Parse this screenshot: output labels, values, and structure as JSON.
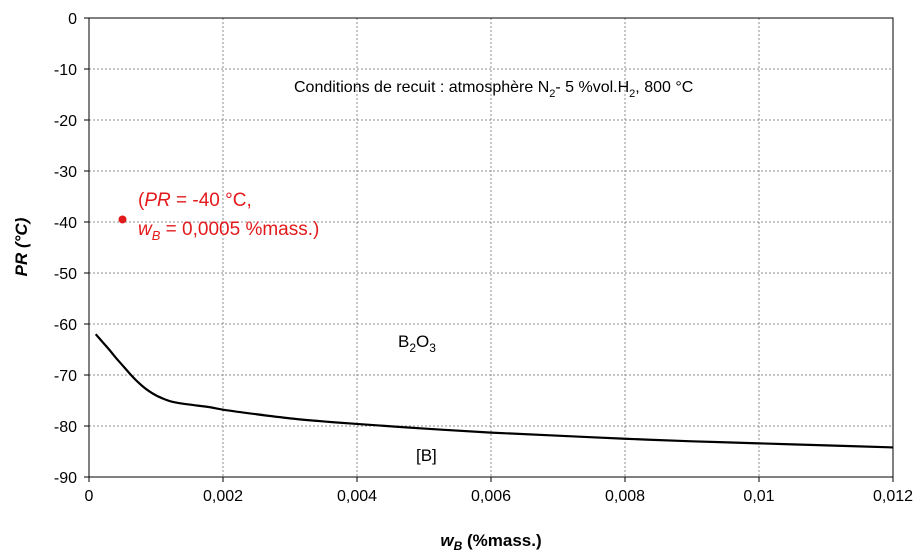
{
  "chart_data": {
    "type": "line",
    "xlabel": {
      "main": "w",
      "sub": "B",
      "rest": " (%mass.)"
    },
    "ylabel": "PR (°C)",
    "xlim": [
      0,
      0.012
    ],
    "ylim": [
      -90,
      0
    ],
    "x_ticks": [
      0,
      0.002,
      0.004,
      0.006,
      0.008,
      0.01,
      0.012
    ],
    "x_tick_labels": [
      "0",
      "0,002",
      "0,004",
      "0,006",
      "0,008",
      "0,01",
      "0,012"
    ],
    "y_ticks": [
      0,
      -10,
      -20,
      -30,
      -40,
      -50,
      -60,
      -70,
      -80,
      -90
    ],
    "y_tick_labels": [
      "0",
      "-10",
      "-20",
      "-30",
      "-40",
      "-50",
      "-60",
      "-70",
      "-80",
      "-90"
    ],
    "grid": true,
    "series": [
      {
        "color": "#000000",
        "x": [
          0.0001,
          0.0002,
          0.0003,
          0.0004,
          0.0005,
          0.0006,
          0.0007,
          0.0008,
          0.0009,
          0.001,
          0.0011,
          0.0012,
          0.0013,
          0.0015,
          0.0018,
          0.002,
          0.0025,
          0.003,
          0.0035,
          0.004,
          0.005,
          0.006,
          0.007,
          0.008,
          0.009,
          0.01,
          0.011,
          0.012
        ],
        "y": [
          -62,
          -63.5,
          -65,
          -66.6,
          -68.1,
          -69.6,
          -71,
          -72.2,
          -73.2,
          -74,
          -74.6,
          -75.1,
          -75.4,
          -75.8,
          -76.3,
          -76.8,
          -77.7,
          -78.5,
          -79.1,
          -79.6,
          -80.5,
          -81.3,
          -81.9,
          -82.5,
          -83,
          -83.4,
          -83.8,
          -84.2
        ]
      }
    ],
    "point": {
      "x": 0.0005,
      "y": -39.5,
      "color": "#e31a1c"
    },
    "annotations": {
      "conditions": {
        "prefix": "Conditions de recuit : atmosphère N",
        "sub1": "2",
        "mid": "- 5 %vol.H",
        "sub2": "2",
        "suffix": ", 800 °C"
      },
      "b2o3": {
        "b": "B",
        "s1": "2",
        "o": "O",
        "s2": "3"
      },
      "boron": "[B]",
      "point_label": {
        "line1_open": "(",
        "line1_var": "PR",
        "line1_rest": " = -40 °C,",
        "line2_var": "w",
        "line2_sub": "B",
        "line2_rest": " = 0,0005 %mass.)"
      }
    }
  }
}
